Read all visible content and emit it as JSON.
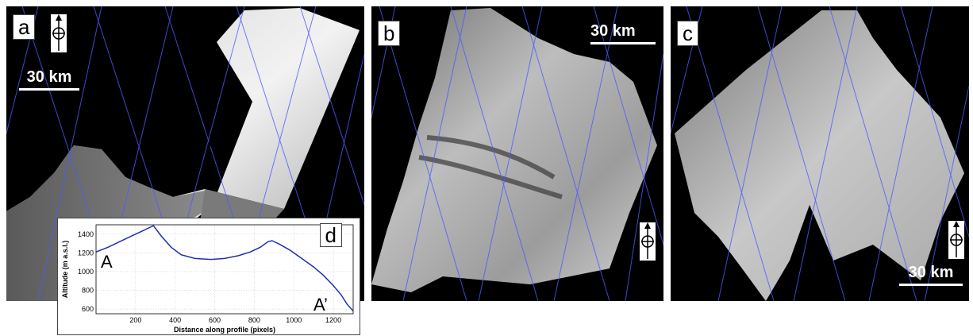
{
  "panels": {
    "a": {
      "label": "a",
      "scale_text": "30 km",
      "profile_start": "A",
      "profile_end": "A’"
    },
    "b": {
      "label": "b",
      "scale_text": "30 km"
    },
    "c": {
      "label": "c",
      "scale_text": "30 km"
    }
  },
  "inset": {
    "label": "d",
    "start_label": "A",
    "end_label": "A’"
  },
  "chart_data": {
    "type": "line",
    "xlabel": "Distance along profile (pixels)",
    "ylabel": "Altitude (m a.s.l.)",
    "xlim": [
      0,
      1300
    ],
    "ylim": [
      550,
      1500
    ],
    "xticks": [
      200,
      400,
      600,
      800,
      1000,
      1200
    ],
    "yticks": [
      600,
      800,
      1000,
      1200,
      1400
    ],
    "grid": true,
    "series": [
      {
        "color": "#1f2fb0",
        "x": [
          0,
          60,
          120,
          180,
          230,
          270,
          290,
          330,
          380,
          430,
          500,
          580,
          650,
          720,
          780,
          830,
          870,
          890,
          930,
          980,
          1040,
          1100,
          1150,
          1200,
          1240,
          1270,
          1300
        ],
        "y": [
          1210,
          1260,
          1320,
          1380,
          1430,
          1470,
          1490,
          1380,
          1260,
          1180,
          1140,
          1130,
          1140,
          1170,
          1210,
          1260,
          1320,
          1330,
          1290,
          1230,
          1140,
          1050,
          960,
          850,
          750,
          650,
          580
        ]
      }
    ]
  },
  "colors": {
    "orbit_lines": "#4a5cff",
    "profile_line": "#000000"
  },
  "icons": [
    "north-arrow-icon"
  ]
}
